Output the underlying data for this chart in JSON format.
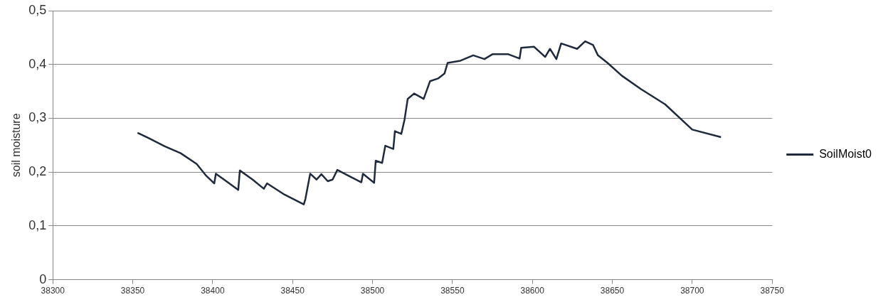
{
  "chart_data": {
    "type": "line",
    "ylabel": "soil moisture",
    "xlim": [
      38300,
      38750
    ],
    "xticks": [
      38300,
      38350,
      38400,
      38450,
      38500,
      38550,
      38600,
      38650,
      38700,
      38750
    ],
    "ylim": [
      0,
      0.5
    ],
    "yticks": [
      {
        "value": 0,
        "label": "0"
      },
      {
        "value": 0.1,
        "label": "0,1"
      },
      {
        "value": 0.2,
        "label": "0,2"
      },
      {
        "value": 0.3,
        "label": "0,3"
      },
      {
        "value": 0.4,
        "label": "0,4"
      },
      {
        "value": 0.5,
        "label": "0,5"
      }
    ],
    "grid": "y",
    "legend": "right",
    "marker": "none",
    "line_style": "solid",
    "series": [
      {
        "name": "SoilMoist0",
        "color": "#1f2a3c",
        "x": [
          38353,
          38360,
          38370,
          38380,
          38390,
          38396,
          38401,
          38402,
          38416,
          38417,
          38425,
          38432,
          38434,
          38445,
          38457,
          38458,
          38461,
          38465,
          38468,
          38472,
          38475,
          38478,
          38485,
          38493,
          38494,
          38501,
          38502,
          38506,
          38508,
          38513,
          38514,
          38518,
          38520,
          38522,
          38526,
          38532,
          38536,
          38541,
          38545,
          38547,
          38555,
          38563,
          38570,
          38575,
          38585,
          38592,
          38593,
          38601,
          38608,
          38611,
          38615,
          38618,
          38628,
          38633,
          38638,
          38641,
          38647,
          38656,
          38668,
          38683,
          38700,
          38718
        ],
        "values": [
          0.273,
          0.263,
          0.248,
          0.235,
          0.215,
          0.193,
          0.179,
          0.197,
          0.167,
          0.203,
          0.186,
          0.169,
          0.179,
          0.158,
          0.14,
          0.15,
          0.197,
          0.186,
          0.196,
          0.183,
          0.186,
          0.204,
          0.193,
          0.181,
          0.197,
          0.18,
          0.221,
          0.217,
          0.249,
          0.243,
          0.276,
          0.271,
          0.297,
          0.336,
          0.346,
          0.336,
          0.369,
          0.374,
          0.383,
          0.403,
          0.407,
          0.417,
          0.41,
          0.419,
          0.419,
          0.411,
          0.431,
          0.433,
          0.414,
          0.429,
          0.41,
          0.439,
          0.429,
          0.443,
          0.436,
          0.417,
          0.403,
          0.379,
          0.354,
          0.326,
          0.279,
          0.265
        ]
      }
    ]
  }
}
